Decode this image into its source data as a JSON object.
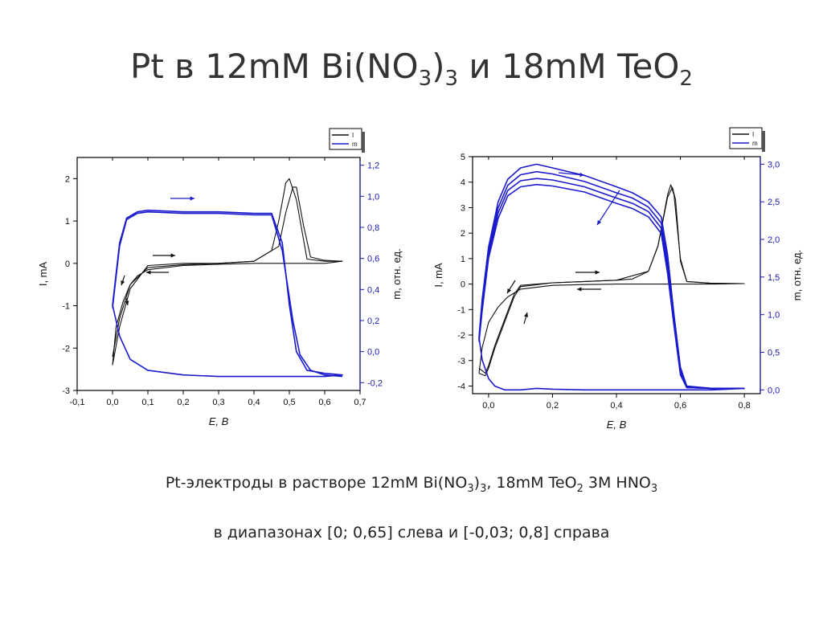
{
  "slide": {
    "title_main": "Pt в 12mM Bi(NO",
    "title_sub1": "3",
    "title_mid": ")",
    "title_sub2": "3",
    "title_end": " и 18mM TeO",
    "title_sub3": "2",
    "caption1_a": "Pt-электроды в растворе 12mM Bi(NO",
    "caption1_s1": "3",
    "caption1_b": ")",
    "caption1_s2": "3",
    "caption1_c": ", 18mM TeO",
    "caption1_s3": "2",
    "caption1_d": " 3M HNO",
    "caption1_s4": "3",
    "caption2": "в диапазонах [0; 0,65] слева и [-0,03; 0,8] справа"
  },
  "colors": {
    "current": "#111111",
    "mass": "#1a1acc"
  },
  "chart_data": [
    {
      "type": "line",
      "xlabel": "E, В",
      "ylabel": "I, mA",
      "y2label": "m, отн. ед.",
      "xlim": [
        -0.1,
        0.7
      ],
      "ylim": [
        -3,
        2.5
      ],
      "y2lim": [
        -0.25,
        1.25
      ],
      "xticks": [
        "-0,1",
        "0,0",
        "0,1",
        "0,2",
        "0,3",
        "0,4",
        "0,5",
        "0,6",
        "0,7"
      ],
      "yticks": [
        "-3",
        "-2",
        "-1",
        "0",
        "1",
        "2"
      ],
      "y2ticks": [
        "-0,2",
        "0,0",
        "0,2",
        "0,4",
        "0,6",
        "0,8",
        "1,0",
        "1,2"
      ],
      "legend": {
        "position": "top-right",
        "entries": [
          "I",
          "m"
        ]
      },
      "series": [
        {
          "name": "I",
          "axis": "left",
          "color": "#111111",
          "x": [
            0.0,
            0.02,
            0.05,
            0.1,
            0.2,
            0.3,
            0.4,
            0.45,
            0.47,
            0.49,
            0.5,
            0.52,
            0.55,
            0.6,
            0.65,
            0.6,
            0.5,
            0.4,
            0.3,
            0.2,
            0.1,
            0.07,
            0.05,
            0.03,
            0.01,
            0.0
          ],
          "y": [
            -2.4,
            -1.5,
            -0.6,
            -0.05,
            0.0,
            0.0,
            0.05,
            0.3,
            1.0,
            1.9,
            2.0,
            1.5,
            0.1,
            0.05,
            0.05,
            0.0,
            0.0,
            0.0,
            -0.02,
            -0.05,
            -0.15,
            -0.3,
            -0.5,
            -0.9,
            -1.5,
            -2.4
          ]
        },
        {
          "name": "I",
          "axis": "left",
          "color": "#111111",
          "x": [
            0.0,
            0.02,
            0.05,
            0.1,
            0.2,
            0.3,
            0.4,
            0.47,
            0.49,
            0.51,
            0.52,
            0.54,
            0.56,
            0.6,
            0.65
          ],
          "y": [
            -2.2,
            -1.3,
            -0.5,
            -0.1,
            -0.03,
            0.0,
            0.05,
            0.4,
            1.2,
            1.8,
            1.8,
            0.9,
            0.15,
            0.07,
            0.05
          ]
        },
        {
          "name": "m",
          "axis": "right",
          "color": "#1a1acc",
          "x": [
            0.0,
            0.005,
            0.02,
            0.04,
            0.07,
            0.1,
            0.2,
            0.3,
            0.4,
            0.45,
            0.48,
            0.5,
            0.52,
            0.55,
            0.6,
            0.65,
            0.6,
            0.5,
            0.4,
            0.3,
            0.2,
            0.1,
            0.05,
            0.02,
            0.0
          ],
          "y": [
            0.3,
            0.4,
            0.7,
            0.86,
            0.9,
            0.91,
            0.9,
            0.9,
            0.89,
            0.89,
            0.7,
            0.3,
            0.0,
            -0.12,
            -0.14,
            -0.15,
            -0.16,
            -0.16,
            -0.16,
            -0.16,
            -0.15,
            -0.12,
            -0.05,
            0.1,
            0.3
          ]
        },
        {
          "name": "m",
          "axis": "right",
          "color": "#1a1acc",
          "x": [
            0.0,
            0.005,
            0.02,
            0.04,
            0.07,
            0.1,
            0.2,
            0.3,
            0.4,
            0.45,
            0.48,
            0.51,
            0.53,
            0.56,
            0.6,
            0.65
          ],
          "y": [
            0.28,
            0.38,
            0.68,
            0.85,
            0.89,
            0.9,
            0.89,
            0.89,
            0.88,
            0.88,
            0.65,
            0.2,
            -0.02,
            -0.12,
            -0.15,
            -0.16
          ]
        }
      ]
    },
    {
      "type": "line",
      "xlabel": "E, В",
      "ylabel": "I, mA",
      "y2label": "m, отн. ед.",
      "xlim": [
        -0.05,
        0.85
      ],
      "ylim": [
        -4.3,
        5
      ],
      "y2lim": [
        -0.05,
        3.1
      ],
      "xticks": [
        "0,0",
        "0,2",
        "0,4",
        "0,6",
        "0,8"
      ],
      "yticks": [
        "-4",
        "-3",
        "-2",
        "-1",
        "0",
        "1",
        "2",
        "3",
        "4",
        "5"
      ],
      "y2ticks": [
        "0,0",
        "0,5",
        "1,0",
        "1,5",
        "2,0",
        "2,5",
        "3,0"
      ],
      "legend": {
        "position": "top-right",
        "entries": [
          "I",
          "m"
        ]
      },
      "series": [
        {
          "name": "I",
          "axis": "left",
          "color": "#111111",
          "x": [
            -0.03,
            -0.01,
            0.0,
            0.02,
            0.05,
            0.08,
            0.1,
            0.2,
            0.3,
            0.4,
            0.45,
            0.5,
            0.53,
            0.56,
            0.57,
            0.58,
            0.6,
            0.62,
            0.7,
            0.8,
            0.7,
            0.6,
            0.5,
            0.4,
            0.3,
            0.2,
            0.1,
            0.06,
            0.03,
            0.0,
            -0.02,
            -0.03
          ],
          "y": [
            -3.5,
            -3.6,
            -3.3,
            -2.5,
            -1.5,
            -0.5,
            -0.1,
            0.05,
            0.1,
            0.15,
            0.2,
            0.5,
            1.5,
            3.5,
            3.9,
            3.5,
            1.0,
            0.1,
            0.03,
            0.02,
            0.0,
            0.0,
            0.0,
            0.0,
            -0.02,
            -0.05,
            -0.2,
            -0.5,
            -0.9,
            -1.5,
            -2.5,
            -3.5
          ]
        },
        {
          "name": "I",
          "axis": "left",
          "color": "#111111",
          "x": [
            -0.03,
            -0.01,
            0.0,
            0.02,
            0.05,
            0.08,
            0.1,
            0.2,
            0.3,
            0.4,
            0.5,
            0.53,
            0.56,
            0.575,
            0.585,
            0.6,
            0.62,
            0.7,
            0.8
          ],
          "y": [
            -3.3,
            -3.5,
            -3.2,
            -2.4,
            -1.4,
            -0.4,
            -0.05,
            0.05,
            0.1,
            0.15,
            0.5,
            1.5,
            3.4,
            3.8,
            3.3,
            0.9,
            0.1,
            0.03,
            0.02
          ]
        },
        {
          "name": "m",
          "axis": "right",
          "color": "#1a1acc",
          "x": [
            -0.03,
            -0.02,
            0.0,
            0.03,
            0.06,
            0.1,
            0.15,
            0.2,
            0.3,
            0.4,
            0.45,
            0.5,
            0.54,
            0.56,
            0.58,
            0.6,
            0.62,
            0.7,
            0.8,
            0.7,
            0.6,
            0.5,
            0.4,
            0.3,
            0.2,
            0.15,
            0.1,
            0.05,
            0.02,
            0.0,
            -0.02,
            -0.03
          ],
          "y": [
            0.7,
            1.2,
            1.9,
            2.5,
            2.8,
            2.95,
            3.0,
            2.95,
            2.85,
            2.7,
            2.62,
            2.5,
            2.3,
            1.8,
            1.0,
            0.3,
            0.05,
            0.02,
            0.02,
            0.0,
            0.0,
            0.0,
            0.0,
            0.0,
            0.01,
            0.02,
            0.0,
            0.0,
            0.05,
            0.15,
            0.4,
            0.7
          ]
        },
        {
          "name": "m",
          "axis": "right",
          "color": "#1a1acc",
          "x": [
            -0.03,
            -0.02,
            0.0,
            0.03,
            0.06,
            0.1,
            0.15,
            0.2,
            0.3,
            0.4,
            0.45,
            0.5,
            0.54,
            0.56,
            0.58,
            0.6,
            0.62,
            0.7,
            0.8
          ],
          "y": [
            0.68,
            1.15,
            1.85,
            2.42,
            2.72,
            2.86,
            2.9,
            2.87,
            2.77,
            2.62,
            2.55,
            2.43,
            2.22,
            1.7,
            0.95,
            0.25,
            0.04,
            0.02,
            0.02
          ]
        },
        {
          "name": "m",
          "axis": "right",
          "color": "#1a1acc",
          "x": [
            -0.03,
            -0.02,
            0.0,
            0.03,
            0.06,
            0.1,
            0.15,
            0.2,
            0.3,
            0.4,
            0.45,
            0.5,
            0.54,
            0.56,
            0.58,
            0.6,
            0.62,
            0.7,
            0.8
          ],
          "y": [
            0.66,
            1.1,
            1.8,
            2.35,
            2.65,
            2.78,
            2.81,
            2.79,
            2.7,
            2.55,
            2.48,
            2.37,
            2.15,
            1.62,
            0.9,
            0.22,
            0.03,
            0.02,
            0.02
          ]
        },
        {
          "name": "m",
          "axis": "right",
          "color": "#1a1acc",
          "x": [
            -0.03,
            -0.02,
            0.0,
            0.03,
            0.06,
            0.1,
            0.15,
            0.2,
            0.3,
            0.4,
            0.45,
            0.5,
            0.54,
            0.56,
            0.58,
            0.6,
            0.62,
            0.7,
            0.8
          ],
          "y": [
            0.64,
            1.05,
            1.75,
            2.28,
            2.58,
            2.7,
            2.73,
            2.71,
            2.63,
            2.48,
            2.41,
            2.3,
            2.08,
            1.55,
            0.85,
            0.2,
            0.03,
            0.02,
            0.02
          ]
        }
      ]
    }
  ]
}
